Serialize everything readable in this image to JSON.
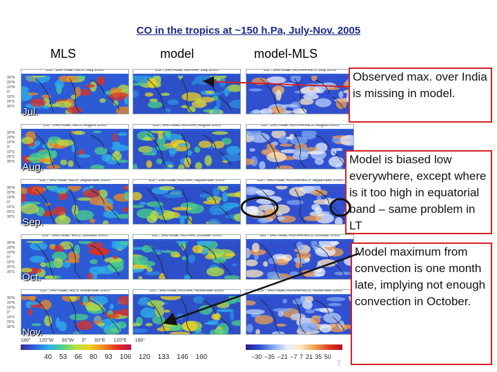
{
  "title": "CO in the tropics at ~150 h.Pa, July-Nov. 2005",
  "columns": {
    "mls": "MLS",
    "model": "model",
    "diff": "model-MLS"
  },
  "months": [
    "Jul.",
    "Aug.",
    "Sep.",
    "Oct.",
    "Nov."
  ],
  "captions": {
    "mls": [
      "CO , 146 mbar, MLS, July 2005",
      "CO , 146 mbar, MLS, August 2005",
      "CO , 146 mbar, MLS, September 2005",
      "CO , 146 mbar, MLS, October 2005",
      "CO , 146 mbar, MLS, November 2005"
    ],
    "model": [
      "CO , 146 mbar, AURA4, July 2005",
      "CO , 146 mbar, AURA4, August 2005",
      "CO , 146 mbar, AURA4, September 2005",
      "CO , 146 mbar, AURA4, October 2005",
      "CO , 146 mbar, AURA4, November 2005"
    ],
    "diff": [
      "CO , 146 mbar, AURA4-MLS, July 2005",
      "CO , 146 mbar, AURA4-MLS, August 2005",
      "CO , 146 mbar, AURA4-MLS, September 2005",
      "CO , 146 mbar, AURA4-MLS, October 2005",
      "CO , 146 mbar, AURA4-MLS, November 2005"
    ]
  },
  "latitudes": [
    "30°N",
    "20°N",
    "10°N",
    "0°",
    "10°S",
    "20°S",
    "30°S"
  ],
  "longitudes": [
    "180°",
    "120°W",
    "60°W",
    "0°",
    "60°E",
    "120°E",
    "180°"
  ],
  "colorbar_abs": [
    "40",
    "53",
    "66",
    "80",
    "93",
    "106",
    "120",
    "133",
    "146",
    "160"
  ],
  "colorbar_diff": [
    "−30",
    "−35",
    "−21",
    "−7",
    "7",
    "21",
    "35",
    "50"
  ],
  "callouts": {
    "india": "Observed max. over India is missing in model.",
    "bias": "Model is biased low everywhere, except where is it too high in equatorial band – same problem in LT",
    "convection": "Model maximum from convection is one month late, implying not enough convection in October."
  },
  "colors": {
    "title": "#1a2a8a",
    "callout_border": "#d42020",
    "ellipse": "#111111",
    "arrow": "#111111"
  },
  "slide_number": "7"
}
